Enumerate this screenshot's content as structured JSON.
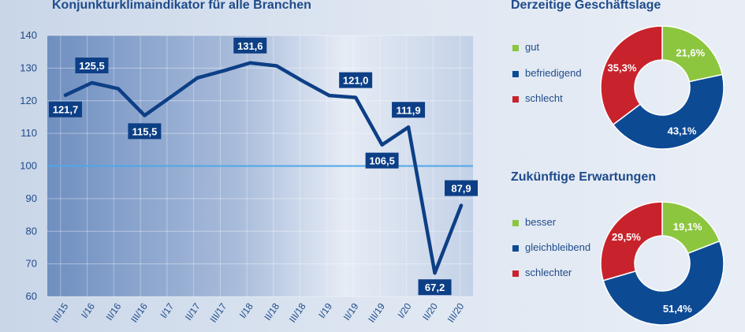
{
  "colors": {
    "line": "#0d3f86",
    "label_bg": "#0d3f86",
    "ref_line": "#4fa7e8",
    "gut": "#8cc63f",
    "befriedigend": "#0d4a94",
    "schlecht": "#c8232c"
  },
  "chart_data": [
    {
      "type": "line",
      "title": "Konjunkturklimaindikator für alle Branchen",
      "xlabel": "",
      "ylabel": "",
      "ylim": [
        60,
        140
      ],
      "yticks": [
        60,
        70,
        80,
        90,
        100,
        110,
        120,
        130,
        140
      ],
      "reference_line": 100,
      "grid": true,
      "categories": [
        "III/15",
        "I/16",
        "II/16",
        "III/16",
        "I/17",
        "II/17",
        "III/17",
        "I/18",
        "II/18",
        "III/18",
        "I/19",
        "II/19",
        "III/19",
        "I/20",
        "II/20",
        "III/20"
      ],
      "series": [
        {
          "values": [
            121.7,
            125.5,
            123.7,
            115.5,
            121.2,
            127.0,
            129.2,
            131.6,
            130.7,
            126.0,
            121.6,
            121.0,
            106.5,
            111.9,
            67.2,
            87.9
          ],
          "labels": [
            "121,7",
            "125,5",
            "",
            "115,5",
            "",
            "",
            "",
            "131,6",
            "",
            "",
            "",
            "121,0",
            "106,5",
            "111,9",
            "67,2",
            "87,9"
          ]
        }
      ]
    },
    {
      "type": "pie",
      "title": "Derzeitige Geschäftslage",
      "legend_position": "left",
      "slices": [
        {
          "name": "gut",
          "value": 21.6,
          "label": "21,6%",
          "color": "#8cc63f"
        },
        {
          "name": "befriedigend",
          "value": 43.1,
          "label": "43,1%",
          "color": "#0d4a94"
        },
        {
          "name": "schlecht",
          "value": 35.3,
          "label": "35,3%",
          "color": "#c8232c"
        }
      ]
    },
    {
      "type": "pie",
      "title": "Zukünftige Erwartungen",
      "legend_position": "left",
      "slices": [
        {
          "name": "besser",
          "value": 19.1,
          "label": "19,1%",
          "color": "#8cc63f"
        },
        {
          "name": "gleichbleibend",
          "value": 51.4,
          "label": "51,4%",
          "color": "#0d4a94"
        },
        {
          "name": "schlechter",
          "value": 29.5,
          "label": "29,5%",
          "color": "#c8232c"
        }
      ]
    }
  ]
}
